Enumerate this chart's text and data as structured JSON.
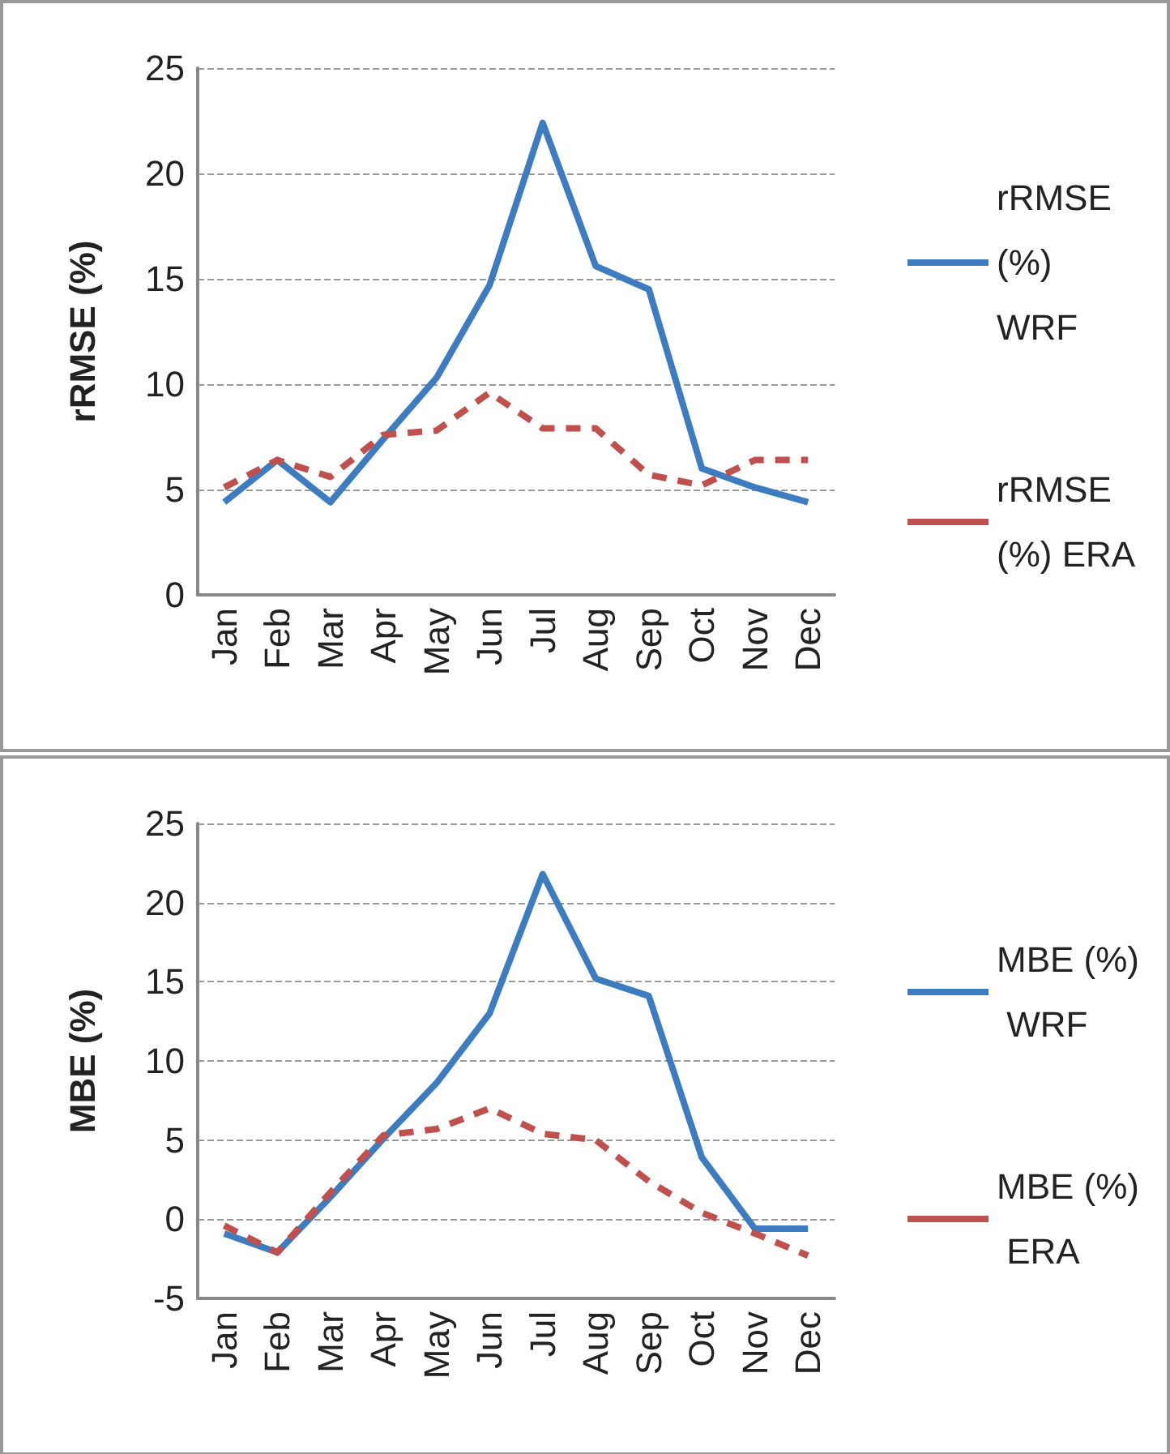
{
  "chart_data": [
    {
      "type": "line",
      "ylabel": "rRMSE (%)",
      "categories": [
        "Jan",
        "Feb",
        "Mar",
        "Apr",
        "May",
        "Jun",
        "Jul",
        "Aug",
        "Sep",
        "Oct",
        "Nov",
        "Dec"
      ],
      "series": [
        {
          "name": "rRMSE (%) WRF",
          "color": "#3d7cc0",
          "line_style": "solid",
          "values": [
            4.4,
            6.4,
            4.4,
            7.4,
            10.3,
            14.7,
            22.4,
            15.6,
            14.5,
            6.0,
            5.1,
            4.4
          ]
        },
        {
          "name": "rRMSE (%) ERA",
          "color": "#c0504d",
          "line_style": "dashed",
          "values": [
            5.1,
            6.4,
            5.6,
            7.6,
            7.8,
            9.6,
            7.9,
            7.9,
            5.7,
            5.2,
            6.4,
            6.4
          ]
        }
      ],
      "ylim": [
        0,
        25
      ],
      "yticks": [
        0,
        5,
        10,
        15,
        20,
        25
      ],
      "grid": "y",
      "legend": "right",
      "marker": "none"
    },
    {
      "type": "line",
      "ylabel": "MBE (%)",
      "categories": [
        "Jan",
        "Feb",
        "Mar",
        "Apr",
        "May",
        "Jun",
        "Jul",
        "Aug",
        "Sep",
        "Oct",
        "Nov",
        "Dec"
      ],
      "series": [
        {
          "name": "MBE (%) WRF",
          "color": "#3d7cc0",
          "line_style": "solid",
          "values": [
            -0.9,
            -2.1,
            1.4,
            5.1,
            8.6,
            13.0,
            21.8,
            15.2,
            14.1,
            3.9,
            -0.6,
            -0.6
          ]
        },
        {
          "name": "MBE (%) ERA",
          "color": "#c0504d",
          "line_style": "dashed",
          "values": [
            -0.4,
            -2.1,
            1.7,
            5.3,
            5.7,
            7.0,
            5.4,
            5.0,
            2.4,
            0.4,
            -0.9,
            -2.3
          ]
        }
      ],
      "ylim": [
        -5,
        25
      ],
      "yticks": [
        -5,
        0,
        5,
        10,
        15,
        20,
        25
      ],
      "grid": "y",
      "legend": "right",
      "marker": "none"
    }
  ]
}
